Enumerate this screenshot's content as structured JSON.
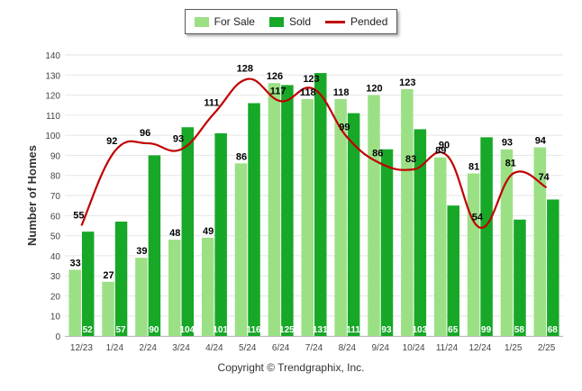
{
  "chart_data": {
    "type": "bar",
    "categories": [
      "12/23",
      "1/24",
      "2/24",
      "3/24",
      "4/24",
      "5/24",
      "6/24",
      "7/24",
      "8/24",
      "9/24",
      "10/24",
      "11/24",
      "12/24",
      "1/25",
      "2/25"
    ],
    "series": [
      {
        "name": "For Sale",
        "type": "bar",
        "color": "#9be085",
        "values": [
          33,
          27,
          39,
          48,
          49,
          86,
          126,
          118,
          118,
          120,
          123,
          89,
          81,
          93,
          94
        ]
      },
      {
        "name": "Sold",
        "type": "bar",
        "color": "#17a828",
        "values": [
          52,
          57,
          90,
          104,
          101,
          116,
          125,
          131,
          111,
          93,
          103,
          65,
          99,
          58,
          68
        ]
      },
      {
        "name": "Pended",
        "type": "line",
        "color": "#c00000",
        "values": [
          55,
          92,
          96,
          93,
          111,
          128,
          117,
          123,
          99,
          86,
          83,
          90,
          54,
          81,
          74
        ]
      }
    ],
    "ylabel": "Number of Homes",
    "xlabel": "",
    "ylim": [
      0,
      140
    ],
    "yticks": [
      0,
      10,
      20,
      30,
      40,
      50,
      60,
      70,
      80,
      90,
      100,
      110,
      120,
      130,
      140
    ],
    "grid": true,
    "legend_position": "top-center"
  },
  "legend": [
    {
      "label": "For Sale",
      "color": "#9be085",
      "kind": "bar"
    },
    {
      "label": "Sold",
      "color": "#17a828",
      "kind": "bar"
    },
    {
      "label": "Pended",
      "color": "#c00000",
      "kind": "line"
    }
  ],
  "footer": {
    "copyright": "Copyright © Trendgraphix, Inc."
  }
}
